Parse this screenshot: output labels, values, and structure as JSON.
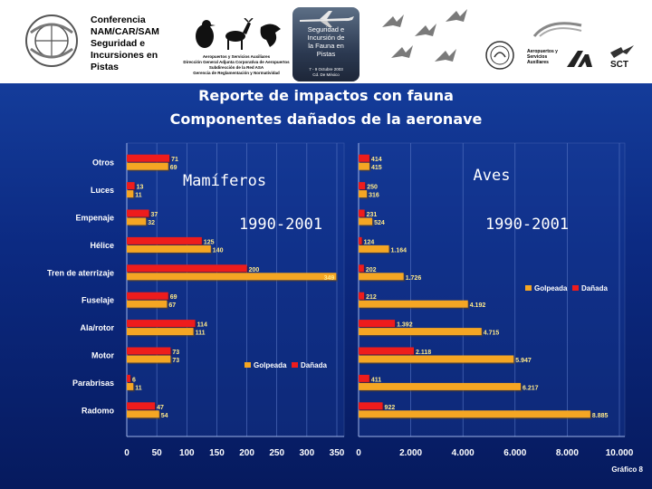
{
  "header": {
    "conference_line1": "Conferencia",
    "conference_line2": "NAM/CAR/SAM",
    "conference_line3": "Seguridad e",
    "conference_line4": "Incursiones en",
    "conference_line5": "Pistas",
    "authority_line1": "Aeropuertos y Servicios Auxiliares",
    "authority_line2": "Dirección General Adjunta Corporativa de Aeropuertos",
    "authority_line3": "Subdirección de la Red ASA",
    "authority_line4": "Gerencia de Reglamentación y Normatividad",
    "badge_title_line1": "Seguridad e",
    "badge_title_line2": "Incursión de",
    "badge_title_line3": "la Fauna en",
    "badge_title_line4": "Pistas",
    "badge_date_line1": "7 - 9 Octubre 2003",
    "badge_date_line2": "Cd. De México",
    "right_logo_text1": "Aeropuertos y",
    "right_logo_text2": "Servicios",
    "right_logo_text3": "Auxiliares",
    "right_logo_sct": "SCT"
  },
  "title_line1": "Reporte de impactos con fauna",
  "title_line2": "Componentes dañados de la aeronave",
  "footer_label": "Gráfico 8",
  "colors": {
    "background_top": "#143c9a",
    "background_bottom": "#061a5e",
    "plot_panel": "#d9d9d9",
    "golpeada": "#f5a623",
    "danada": "#ee1c1c",
    "text": "#ffffff",
    "label_yellow": "#ffe98a"
  },
  "chart_data": [
    {
      "type": "bar",
      "orientation": "horizontal",
      "title": "Mamíferos",
      "subtitle": "1990-2001",
      "categories": [
        "Otros",
        "Luces",
        "Empenaje",
        "Hélice",
        "Tren de aterrizaje",
        "Fuselaje",
        "Ala/rotor",
        "Motor",
        "Parabrisas",
        "Radomo"
      ],
      "series": [
        {
          "name": "Golpeada",
          "values": [
            69,
            11,
            32,
            140,
            349,
            67,
            111,
            73,
            11,
            54
          ]
        },
        {
          "name": "Dañada",
          "values": [
            71,
            13,
            37,
            125,
            200,
            69,
            114,
            73,
            6,
            47
          ]
        }
      ],
      "value_labels": [
        {
          "golpeada": "69",
          "danada": "71"
        },
        {
          "golpeada": "11",
          "danada": "13"
        },
        {
          "golpeada": "32",
          "danada": "37"
        },
        {
          "golpeada": "140",
          "danada": "125"
        },
        {
          "golpeada": "349",
          "danada": "200"
        },
        {
          "golpeada": "67",
          "danada": "69"
        },
        {
          "golpeada": "111",
          "danada": "114"
        },
        {
          "golpeada": "73",
          "danada": "73"
        },
        {
          "golpeada": "11",
          "danada": "6"
        },
        {
          "golpeada": "54",
          "danada": "47"
        }
      ],
      "xlim": [
        0,
        350
      ],
      "xticks": [
        0,
        50,
        100,
        150,
        200,
        250,
        300,
        350
      ],
      "xtick_labels": [
        "0",
        "50",
        "100",
        "150",
        "200",
        "250",
        "300",
        "350"
      ],
      "legend": "bottom-right",
      "grid": true
    },
    {
      "type": "bar",
      "orientation": "horizontal",
      "title": "Aves",
      "subtitle": "1990-2001",
      "categories": [
        "Otros",
        "Luces",
        "Empenaje",
        "Hélice",
        "Tren de aterrizaje",
        "Fuselaje",
        "Ala/rotor",
        "Motor",
        "Parabrisas",
        "Radomo"
      ],
      "series": [
        {
          "name": "Golpeada",
          "values": [
            415,
            316,
            524,
            1164,
            1726,
            4192,
            4715,
            5947,
            6217,
            8885
          ]
        },
        {
          "name": "Dañada",
          "values": [
            414,
            250,
            231,
            124,
            202,
            212,
            1392,
            2118,
            411,
            922
          ]
        }
      ],
      "value_labels": [
        {
          "golpeada": "415",
          "danada": "414"
        },
        {
          "golpeada": "316",
          "danada": "250"
        },
        {
          "golpeada": "524",
          "danada": "231"
        },
        {
          "golpeada": "1.164",
          "danada": "124"
        },
        {
          "golpeada": "1.726",
          "danada": "202"
        },
        {
          "golpeada": "4.192",
          "danada": "212"
        },
        {
          "golpeada": "4.715",
          "danada": "1.392"
        },
        {
          "golpeada": "5.947",
          "danada": "2.118"
        },
        {
          "golpeada": "6.217",
          "danada": "411"
        },
        {
          "golpeada": "8.885",
          "danada": "922"
        }
      ],
      "xlim": [
        0,
        10000
      ],
      "xticks": [
        0,
        2000,
        4000,
        6000,
        8000,
        10000
      ],
      "xtick_labels": [
        "0",
        "2.000",
        "4.000",
        "6.000",
        "8.000",
        "10.000"
      ],
      "legend": "top-right",
      "grid": true
    }
  ]
}
